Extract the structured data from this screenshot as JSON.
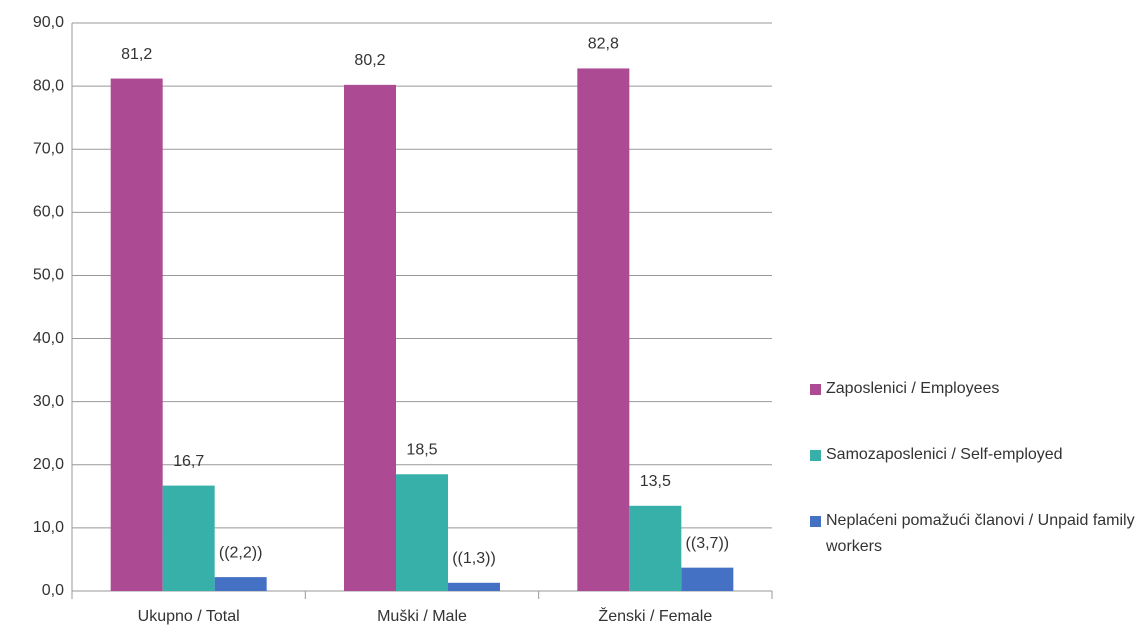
{
  "chart_data": {
    "type": "bar",
    "categories": [
      "Ukupno / Total",
      "Muški / Male",
      "Ženski / Female"
    ],
    "series": [
      {
        "name": "Zaposlenici / Employees",
        "color": "#ac4a93",
        "values": [
          81.2,
          80.2,
          82.8
        ],
        "value_labels": [
          "81,2",
          "80,2",
          "82,8"
        ]
      },
      {
        "name": "Samozaposlenici / Self-employed",
        "color": "#36b0a8",
        "values": [
          16.7,
          18.5,
          13.5
        ],
        "value_labels": [
          "16,7",
          "18,5",
          "13,5"
        ]
      },
      {
        "name": "Neplaćeni pomažući članovi / Unpaid family workers",
        "color": "#4471c4",
        "values": [
          2.2,
          1.3,
          3.7
        ],
        "value_labels": [
          "((2,2))",
          "((1,3))",
          "((3,7))"
        ]
      }
    ],
    "ylim": [
      0,
      90
    ],
    "yticks": [
      {
        "value": 0,
        "label": "0,0"
      },
      {
        "value": 10,
        "label": "10,0"
      },
      {
        "value": 20,
        "label": "20,0"
      },
      {
        "value": 30,
        "label": "30,0"
      },
      {
        "value": 40,
        "label": "40,0"
      },
      {
        "value": 50,
        "label": "50,0"
      },
      {
        "value": 60,
        "label": "60,0"
      },
      {
        "value": 70,
        "label": "70,0"
      },
      {
        "value": 80,
        "label": "80,0"
      },
      {
        "value": 90,
        "label": "90,0"
      }
    ],
    "grid": true,
    "legend": "right"
  }
}
